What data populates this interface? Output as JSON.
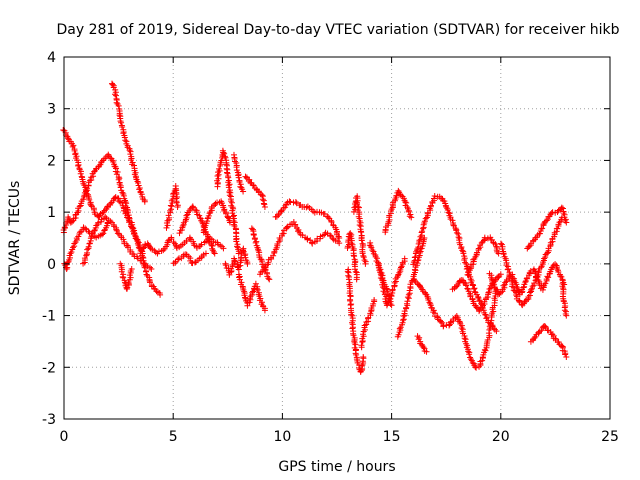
{
  "chart_data": {
    "type": "scatter",
    "title": "Day 281 of 2019, Sidereal Day-to-day VTEC variation (SDTVAR) for receiver hikb",
    "xlabel": "GPS time / hours",
    "ylabel": "SDTVAR / TECUs",
    "xlim": [
      0,
      25
    ],
    "ylim": [
      -3,
      4
    ],
    "xticks": [
      "0",
      "5",
      "10",
      "15",
      "20",
      "25"
    ],
    "yticks": [
      "-3",
      "-2",
      "-1",
      "0",
      "1",
      "2",
      "3",
      "4"
    ],
    "grid": true,
    "marker": "plus",
    "series": [
      {
        "name": "SDTVAR",
        "color": "#ff0000",
        "tracks": [
          {
            "x": [
              0.0,
              0.2,
              0.4,
              0.6,
              0.8,
              1.0,
              1.2,
              1.4,
              1.6,
              1.8,
              2.0,
              2.2,
              2.4,
              2.6,
              2.8,
              3.0,
              3.2,
              3.4,
              3.6,
              3.8,
              4.0,
              4.2,
              4.4
            ],
            "y": [
              2.6,
              2.4,
              2.3,
              2.0,
              1.7,
              1.4,
              1.2,
              1.0,
              0.9,
              1.0,
              1.1,
              1.2,
              1.3,
              1.2,
              1.0,
              0.8,
              0.6,
              0.4,
              0.1,
              -0.2,
              -0.4,
              -0.5,
              -0.6
            ]
          },
          {
            "x": [
              0.0,
              0.1,
              0.2,
              0.3,
              0.5,
              0.7,
              1.0,
              1.2,
              1.4,
              1.6,
              1.8,
              2.0,
              2.2,
              2.4,
              2.6,
              2.8,
              3.0,
              3.2,
              3.4,
              3.6
            ],
            "y": [
              0.6,
              0.8,
              0.9,
              0.8,
              0.9,
              1.1,
              1.4,
              1.6,
              1.8,
              1.9,
              2.0,
              2.1,
              2.0,
              1.8,
              1.5,
              1.2,
              0.9,
              0.6,
              0.4,
              0.2
            ]
          },
          {
            "x": [
              0.0,
              0.1,
              0.3,
              0.6,
              0.9,
              1.2,
              1.5,
              1.8,
              2.0
            ],
            "y": [
              0.0,
              -0.1,
              0.2,
              0.5,
              0.7,
              0.6,
              0.5,
              0.6,
              0.8
            ]
          },
          {
            "x": [
              0.9,
              1.1,
              1.3,
              1.6,
              1.9,
              2.2,
              2.5,
              2.8,
              3.1,
              3.4,
              3.7,
              4.0
            ],
            "y": [
              0.0,
              0.3,
              0.6,
              0.8,
              0.9,
              0.8,
              0.6,
              0.4,
              0.2,
              0.1,
              0.0,
              -0.1
            ]
          },
          {
            "x": [
              2.2,
              2.3,
              2.4,
              2.5,
              2.6,
              2.7,
              2.8,
              2.9,
              3.0,
              3.1,
              3.3,
              3.5,
              3.7
            ],
            "y": [
              3.5,
              3.4,
              3.2,
              3.0,
              2.8,
              2.6,
              2.4,
              2.3,
              2.2,
              2.0,
              1.7,
              1.4,
              1.2
            ]
          },
          {
            "x": [
              2.6,
              2.7,
              2.8,
              2.9,
              3.0,
              3.1
            ],
            "y": [
              0.0,
              -0.2,
              -0.4,
              -0.5,
              -0.3,
              -0.1
            ]
          },
          {
            "x": [
              3.6,
              3.8,
              4.0,
              4.3,
              4.6,
              4.9,
              5.2,
              5.5,
              5.8,
              6.1,
              6.4,
              6.7,
              7.0,
              7.3
            ],
            "y": [
              0.3,
              0.4,
              0.3,
              0.2,
              0.3,
              0.5,
              0.3,
              0.4,
              0.5,
              0.3,
              0.4,
              0.5,
              0.4,
              0.3
            ]
          },
          {
            "x": [
              4.7,
              4.8,
              4.9,
              5.0,
              5.1,
              5.2
            ],
            "y": [
              0.7,
              0.9,
              1.1,
              1.3,
              1.5,
              1.1
            ]
          },
          {
            "x": [
              5.0,
              5.3,
              5.6,
              5.9,
              6.2,
              6.5
            ],
            "y": [
              0.0,
              0.1,
              0.2,
              0.0,
              0.1,
              0.2
            ]
          },
          {
            "x": [
              5.3,
              5.5,
              5.7,
              5.9,
              6.1,
              6.3,
              6.5,
              6.7,
              6.9
            ],
            "y": [
              0.6,
              0.8,
              1.0,
              1.1,
              1.0,
              0.8,
              0.6,
              0.4,
              0.2
            ]
          },
          {
            "x": [
              6.4,
              6.6,
              6.8,
              7.0,
              7.2,
              7.4,
              7.6
            ],
            "y": [
              0.6,
              0.9,
              1.1,
              1.2,
              1.2,
              1.0,
              0.8
            ]
          },
          {
            "x": [
              7.0,
              7.1,
              7.2,
              7.3,
              7.4,
              7.5,
              7.6,
              7.7,
              7.8,
              7.9,
              8.0
            ],
            "y": [
              1.5,
              1.8,
              2.0,
              2.2,
              2.0,
              1.7,
              1.4,
              1.1,
              0.8,
              0.5,
              0.2
            ]
          },
          {
            "x": [
              7.4,
              7.6,
              7.8,
              8.0,
              8.2,
              8.4
            ],
            "y": [
              0.0,
              -0.2,
              0.1,
              -0.1,
              0.3,
              0.0
            ]
          },
          {
            "x": [
              7.8,
              7.9,
              8.0,
              8.1,
              8.2
            ],
            "y": [
              2.1,
              1.9,
              1.7,
              1.5,
              1.4
            ]
          },
          {
            "x": [
              8.0,
              8.2,
              8.4,
              8.6,
              8.8,
              9.0,
              9.2
            ],
            "y": [
              -0.2,
              -0.5,
              -0.8,
              -0.6,
              -0.4,
              -0.7,
              -0.9
            ]
          },
          {
            "x": [
              8.3,
              8.5,
              8.7,
              8.9,
              9.1,
              9.2
            ],
            "y": [
              1.7,
              1.6,
              1.5,
              1.4,
              1.3,
              1.1
            ]
          },
          {
            "x": [
              8.6,
              8.8,
              9.0,
              9.2,
              9.4
            ],
            "y": [
              0.7,
              0.4,
              0.1,
              -0.1,
              -0.3
            ]
          },
          {
            "x": [
              9.0,
              9.3,
              9.6,
              9.9,
              10.2,
              10.5,
              10.8,
              11.1,
              11.4,
              11.7,
              12.0,
              12.3,
              12.6
            ],
            "y": [
              -0.2,
              0.0,
              0.2,
              0.5,
              0.7,
              0.8,
              0.6,
              0.5,
              0.4,
              0.5,
              0.6,
              0.5,
              0.4
            ]
          },
          {
            "x": [
              9.7,
              9.9,
              10.1,
              10.3,
              10.6,
              10.9,
              11.2,
              11.5,
              11.8,
              12.1,
              12.4,
              12.6
            ],
            "y": [
              0.9,
              1.0,
              1.1,
              1.2,
              1.2,
              1.1,
              1.1,
              1.0,
              1.0,
              0.9,
              0.7,
              0.5
            ]
          },
          {
            "x": [
              13.0,
              13.1,
              13.2,
              13.3,
              13.4,
              13.5,
              13.6,
              13.7
            ],
            "y": [
              -0.1,
              -0.6,
              -1.1,
              -1.5,
              -1.8,
              -2.0,
              -2.1,
              -1.8
            ]
          },
          {
            "x": [
              13.0,
              13.1,
              13.2,
              13.3,
              13.4
            ],
            "y": [
              0.3,
              0.6,
              0.4,
              0.1,
              -0.3
            ]
          },
          {
            "x": [
              13.3,
              13.4,
              13.5,
              13.6,
              13.7,
              13.8
            ],
            "y": [
              1.0,
              1.3,
              1.0,
              0.6,
              0.2,
              0.0
            ]
          },
          {
            "x": [
              13.6,
              13.8,
              14.0,
              14.2
            ],
            "y": [
              -1.6,
              -1.2,
              -1.0,
              -0.7
            ]
          },
          {
            "x": [
              14.0,
              14.2,
              14.4,
              14.6,
              14.8,
              15.0
            ],
            "y": [
              0.4,
              0.2,
              0.0,
              -0.3,
              -0.5,
              -0.8
            ]
          },
          {
            "x": [
              14.4,
              14.6,
              14.8,
              15.0,
              15.2,
              15.4,
              15.6
            ],
            "y": [
              0.0,
              -0.4,
              -0.8,
              -0.6,
              -0.3,
              -0.1,
              0.1
            ]
          },
          {
            "x": [
              14.7,
              14.9,
              15.1,
              15.3,
              15.5,
              15.7,
              15.9
            ],
            "y": [
              0.6,
              0.9,
              1.2,
              1.4,
              1.3,
              1.1,
              0.9
            ]
          },
          {
            "x": [
              15.3,
              15.5,
              15.7,
              15.9,
              16.1,
              16.3,
              16.5
            ],
            "y": [
              -1.4,
              -1.1,
              -0.8,
              -0.4,
              -0.1,
              0.2,
              0.5
            ]
          },
          {
            "x": [
              16.0,
              16.2,
              16.4,
              16.6,
              16.8,
              17.0,
              17.2,
              17.4,
              17.6,
              17.8,
              18.0,
              18.2,
              18.4,
              18.6,
              18.8,
              19.0,
              19.2,
              19.4,
              19.6,
              19.8
            ],
            "y": [
              0.0,
              0.3,
              0.6,
              0.9,
              1.1,
              1.3,
              1.3,
              1.2,
              1.0,
              0.8,
              0.6,
              0.3,
              0.0,
              -0.3,
              -0.5,
              -0.7,
              -0.9,
              -1.1,
              -1.2,
              -1.3
            ]
          },
          {
            "x": [
              16.0,
              16.2,
              16.4,
              16.6,
              16.8,
              17.0,
              17.2,
              17.4,
              17.6,
              17.8,
              18.0,
              18.2,
              18.4,
              18.6,
              18.8,
              19.0,
              19.2,
              19.4,
              19.6,
              19.8
            ],
            "y": [
              -0.3,
              -0.4,
              -0.5,
              -0.6,
              -0.8,
              -1.0,
              -1.1,
              -1.2,
              -1.2,
              -1.1,
              -1.0,
              -1.2,
              -1.5,
              -1.8,
              -2.0,
              -2.0,
              -1.8,
              -1.5,
              -1.0,
              -0.5
            ]
          },
          {
            "x": [
              16.2,
              16.4,
              16.6
            ],
            "y": [
              -1.4,
              -1.6,
              -1.7
            ]
          },
          {
            "x": [
              17.8,
              18.0,
              18.2,
              18.4,
              18.6,
              18.8,
              19.0,
              19.2,
              19.4,
              19.6,
              19.8,
              20.0
            ],
            "y": [
              -0.5,
              -0.4,
              -0.3,
              -0.4,
              -0.6,
              -0.8,
              -0.9,
              -0.8,
              -0.6,
              -0.4,
              -0.3,
              -0.2
            ]
          },
          {
            "x": [
              18.5,
              18.7,
              18.9,
              19.1,
              19.3,
              19.5,
              19.7,
              19.9
            ],
            "y": [
              -0.2,
              0.0,
              0.2,
              0.4,
              0.5,
              0.5,
              0.4,
              0.2
            ]
          },
          {
            "x": [
              19.5,
              19.7,
              19.9,
              20.1,
              20.3,
              20.5,
              20.7,
              20.9,
              21.1,
              21.3,
              21.5,
              21.7,
              21.9,
              22.1,
              22.3,
              22.5,
              22.7,
              22.9
            ],
            "y": [
              -0.2,
              -0.4,
              -0.6,
              -0.5,
              -0.3,
              -0.2,
              -0.4,
              -0.6,
              -0.4,
              -0.2,
              -0.1,
              -0.3,
              -0.5,
              -0.3,
              -0.1,
              0.0,
              -0.2,
              -0.4
            ]
          },
          {
            "x": [
              20.0,
              20.2,
              20.4,
              20.6,
              20.8,
              21.0,
              21.2,
              21.4,
              21.6,
              21.8,
              22.0,
              22.2,
              22.4,
              22.6,
              22.8
            ],
            "y": [
              0.4,
              0.1,
              -0.2,
              -0.5,
              -0.7,
              -0.8,
              -0.7,
              -0.5,
              -0.3,
              -0.1,
              0.1,
              0.3,
              0.5,
              0.7,
              0.9
            ]
          },
          {
            "x": [
              21.4,
              21.6,
              21.8,
              22.0,
              22.2,
              22.4,
              22.6,
              22.8,
              23.0
            ],
            "y": [
              -1.5,
              -1.4,
              -1.3,
              -1.2,
              -1.3,
              -1.4,
              -1.5,
              -1.6,
              -1.8
            ]
          },
          {
            "x": [
              21.2,
              21.4,
              21.6,
              21.8,
              22.0,
              22.2,
              22.4,
              22.6,
              22.8,
              23.0
            ],
            "y": [
              0.3,
              0.4,
              0.5,
              0.6,
              0.8,
              0.9,
              1.0,
              1.0,
              1.1,
              0.8
            ]
          },
          {
            "x": [
              22.8,
              22.9,
              23.0
            ],
            "y": [
              -0.4,
              -0.7,
              -1.0
            ]
          }
        ]
      }
    ]
  }
}
